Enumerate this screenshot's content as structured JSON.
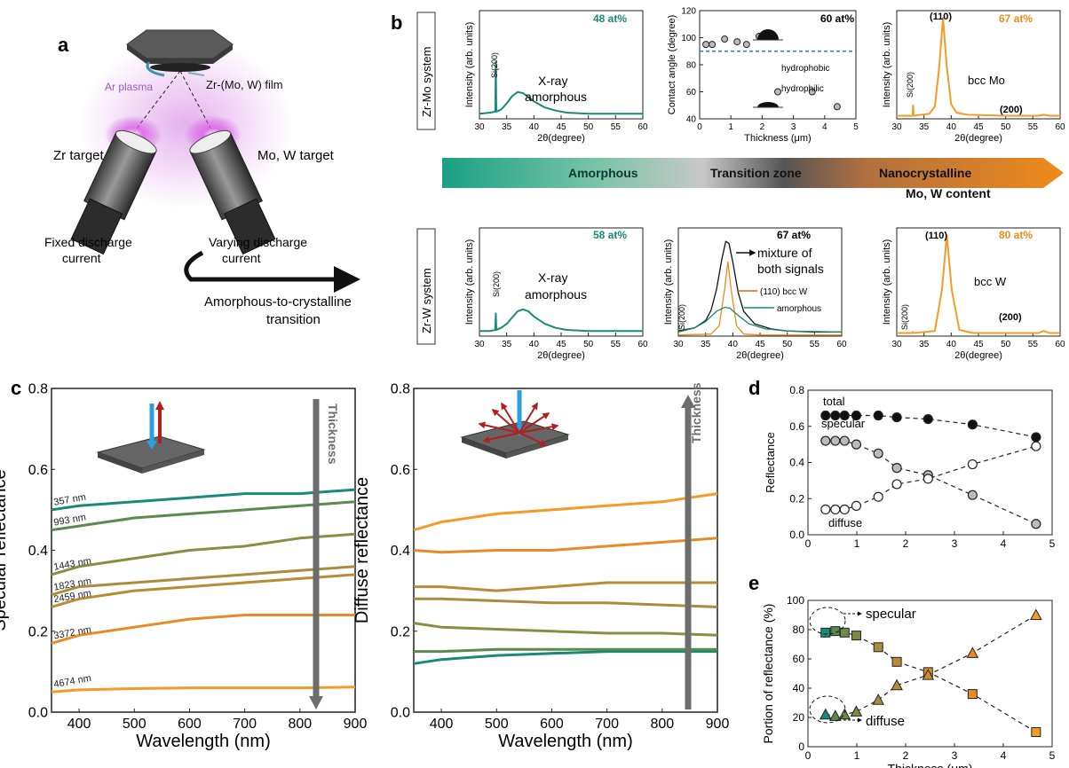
{
  "colors": {
    "teal": "#178a78",
    "orange": "#f59a25",
    "purple": "#9a5ac4",
    "arrowGray": "#6d6d6d",
    "dark": "#111111",
    "dashedBlue": "#2a7fc4",
    "thick": [
      "#178a78",
      "#5c8a4a",
      "#8b8c44",
      "#a98d3e",
      "#b88c36",
      "#e88a26",
      "#f59a25"
    ]
  },
  "panel_a": {
    "letter": "a",
    "ar_plasma": "Ar plasma",
    "film": "Zr-(Mo, W) film",
    "zr_target": "Zr target",
    "mow_target": "Mo, W target",
    "fixed1": "Fixed discharge",
    "fixed2": "current",
    "varying1": "Varying discharge",
    "varying2": "current",
    "transition1": "Amorphous-to-crystalline",
    "transition2": "transition"
  },
  "panel_b": {
    "letter": "b",
    "zrmo_label": "Zr-Mo system",
    "zrw_label": "Zr-W system",
    "band_amorphous": "Amorphous",
    "band_transition": "Transition zone",
    "band_nano": "Nanocrystalline",
    "band_content": "Mo, W content",
    "xrd_xlabel": "2θ(degree)",
    "xrd_ylabel": "Intensity (arb. units)",
    "si_label": "Si(200)",
    "p1": {
      "at": "48 at%",
      "desc1": "X-ray",
      "desc2": "amorphous"
    },
    "p3": {
      "at": "67 at%",
      "peak110": "(110)",
      "peak200": "(200)",
      "desc": "bcc Mo"
    },
    "p4": {
      "at": "58 at%",
      "desc1": "X-ray",
      "desc2": "amorphous"
    },
    "p5": {
      "at": "67 at%",
      "mix1": "mixture of",
      "mix2": "both signals",
      "bccw": "(110) bcc W",
      "amorph": "amorphous"
    },
    "p6": {
      "at": "80 at%",
      "peak110": "(110)",
      "peak200": "(200)",
      "desc": "bcc W"
    },
    "ca": {
      "at": "60 at%",
      "ylabel": "Contact angle (degree)",
      "xlabel": "Thickness (μm)",
      "hydrophobic": "hydrophobic",
      "hydrophilic": "hydrophilic"
    }
  },
  "panel_c_letter": "c",
  "panel_d_letter": "d",
  "panel_e_letter": "e",
  "spec_labels": [
    "357 nm",
    "993 nm",
    "1443 nm",
    "1823 nm",
    "2459 nm",
    "3372 nm",
    "4674 nm"
  ],
  "thickness_label": "Thickness",
  "d_labels": {
    "total": "total",
    "specular": "specular",
    "diffuse": "diffuse"
  },
  "e_labels": {
    "specular": "specular",
    "diffuse": "diffuse"
  },
  "chart_data": [
    {
      "id": "contact_angle",
      "type": "scatter",
      "xlabel": "Thickness (μm)",
      "ylabel": "Contact angle (degree)",
      "xlim": [
        0,
        5
      ],
      "ylim": [
        40,
        120
      ],
      "xticks": [
        0,
        1,
        2,
        3,
        4,
        5
      ],
      "yticks": [
        40,
        60,
        80,
        100,
        120
      ],
      "reference_line": 90,
      "x": [
        0.2,
        0.4,
        0.8,
        1.2,
        1.5,
        1.9,
        2.5,
        3.6,
        4.4
      ],
      "y": [
        95,
        95,
        99,
        97,
        95,
        101,
        60,
        60,
        49
      ]
    },
    {
      "id": "xrd_zrmo_48",
      "type": "line",
      "xlabel": "2θ(degree)",
      "ylabel": "Intensity (arb. units)",
      "xlim": [
        30,
        60
      ],
      "xticks": [
        30,
        35,
        40,
        45,
        50,
        55,
        60
      ],
      "series": [
        {
          "x": [
            30,
            32,
            32.9,
            33,
            33.1,
            34,
            35,
            36,
            37,
            38,
            39,
            40,
            42,
            44,
            46,
            50,
            55,
            60
          ],
          "y": [
            0.05,
            0.06,
            0.07,
            0.55,
            0.07,
            0.09,
            0.15,
            0.22,
            0.26,
            0.25,
            0.21,
            0.17,
            0.11,
            0.08,
            0.06,
            0.05,
            0.05,
            0.05
          ]
        }
      ]
    },
    {
      "id": "xrd_zrmo_67",
      "type": "line",
      "xlabel": "2θ(degree)",
      "ylabel": "Intensity (arb. units)",
      "xlim": [
        30,
        60
      ],
      "xticks": [
        30,
        35,
        40,
        45,
        50,
        55,
        60
      ],
      "series": [
        {
          "x": [
            30,
            32.9,
            33,
            33.1,
            36,
            37,
            37.8,
            38.5,
            39.2,
            40,
            41,
            43,
            50,
            56,
            57,
            58,
            60
          ],
          "y": [
            0.03,
            0.03,
            0.13,
            0.03,
            0.05,
            0.12,
            0.5,
            0.98,
            0.5,
            0.14,
            0.06,
            0.04,
            0.03,
            0.03,
            0.04,
            0.03,
            0.03
          ]
        }
      ]
    },
    {
      "id": "xrd_zrw_58",
      "type": "line",
      "xlabel": "2θ(degree)",
      "ylabel": "Intensity (arb. units)",
      "xlim": [
        30,
        60
      ],
      "xticks": [
        30,
        35,
        40,
        45,
        50,
        55,
        60
      ],
      "series": [
        {
          "x": [
            30,
            32,
            32.9,
            33,
            33.1,
            34,
            35,
            36,
            37,
            38,
            39,
            40,
            42,
            44,
            46,
            50,
            55,
            60
          ],
          "y": [
            0.05,
            0.05,
            0.06,
            0.22,
            0.06,
            0.08,
            0.12,
            0.18,
            0.24,
            0.26,
            0.24,
            0.19,
            0.12,
            0.08,
            0.06,
            0.05,
            0.05,
            0.05
          ]
        }
      ]
    },
    {
      "id": "xrd_zrw_67",
      "type": "line",
      "xlabel": "2θ(degree)",
      "ylabel": "Intensity (arb. units)",
      "xlim": [
        30,
        60
      ],
      "xticks": [
        30,
        35,
        40,
        45,
        50,
        55,
        60
      ],
      "series": [
        {
          "name": "mixture of both signals",
          "x": [
            30,
            33,
            35,
            36,
            37,
            38,
            38.7,
            39.3,
            40,
            41,
            42,
            44,
            47,
            50,
            55,
            60
          ],
          "y": [
            0.05,
            0.08,
            0.15,
            0.25,
            0.45,
            0.75,
            0.92,
            0.9,
            0.72,
            0.42,
            0.24,
            0.12,
            0.07,
            0.05,
            0.04,
            0.04
          ]
        },
        {
          "name": "(110) bcc W",
          "x": [
            30,
            36,
            37.5,
            38.5,
            39.1,
            39.7,
            40.7,
            42,
            45,
            60
          ],
          "y": [
            0.01,
            0.02,
            0.1,
            0.45,
            0.72,
            0.45,
            0.1,
            0.02,
            0.01,
            0.01
          ]
        },
        {
          "name": "amorphous",
          "x": [
            30,
            33,
            35,
            37,
            38.5,
            39.5,
            41,
            43,
            46,
            50,
            60
          ],
          "y": [
            0.04,
            0.08,
            0.14,
            0.24,
            0.28,
            0.27,
            0.2,
            0.12,
            0.07,
            0.05,
            0.04
          ]
        }
      ]
    },
    {
      "id": "xrd_zrw_80",
      "type": "line",
      "xlabel": "2θ(degree)",
      "ylabel": "Intensity (arb. units)",
      "xlim": [
        30,
        60
      ],
      "xticks": [
        30,
        35,
        40,
        45,
        50,
        55,
        60
      ],
      "series": [
        {
          "x": [
            30,
            32.9,
            33,
            33.1,
            37,
            38.3,
            39.2,
            40.1,
            41.5,
            44,
            50,
            56,
            57,
            58,
            60
          ],
          "y": [
            0.03,
            0.03,
            0.04,
            0.03,
            0.05,
            0.45,
            0.98,
            0.45,
            0.06,
            0.03,
            0.03,
            0.03,
            0.05,
            0.03,
            0.03
          ]
        }
      ]
    },
    {
      "id": "specular_reflectance",
      "type": "line",
      "xlabel": "Wavelength (nm)",
      "ylabel": "Specular reflectance",
      "xlim": [
        350,
        900
      ],
      "ylim": [
        0.0,
        0.8
      ],
      "xticks": [
        400,
        500,
        600,
        700,
        800,
        900
      ],
      "yticks": [
        0.0,
        0.2,
        0.4,
        0.6,
        0.8
      ],
      "x": [
        350,
        400,
        500,
        600,
        700,
        800,
        900
      ],
      "series": [
        {
          "name": "357 nm",
          "values": [
            0.5,
            0.51,
            0.52,
            0.53,
            0.54,
            0.54,
            0.55
          ]
        },
        {
          "name": "993 nm",
          "values": [
            0.45,
            0.46,
            0.48,
            0.49,
            0.5,
            0.51,
            0.52
          ]
        },
        {
          "name": "1443 nm",
          "values": [
            0.34,
            0.36,
            0.38,
            0.4,
            0.41,
            0.43,
            0.44
          ]
        },
        {
          "name": "1823 nm",
          "values": [
            0.29,
            0.31,
            0.32,
            0.33,
            0.34,
            0.35,
            0.36
          ]
        },
        {
          "name": "2459 nm",
          "values": [
            0.26,
            0.28,
            0.3,
            0.31,
            0.32,
            0.33,
            0.34
          ]
        },
        {
          "name": "3372 nm",
          "values": [
            0.17,
            0.19,
            0.21,
            0.23,
            0.24,
            0.24,
            0.24
          ]
        },
        {
          "name": "4674 nm",
          "values": [
            0.05,
            0.055,
            0.058,
            0.06,
            0.06,
            0.06,
            0.062
          ]
        }
      ]
    },
    {
      "id": "diffuse_reflectance",
      "type": "line",
      "xlabel": "Wavelength (nm)",
      "ylabel": "Diffuse reflectance",
      "xlim": [
        350,
        900
      ],
      "ylim": [
        0.0,
        0.8
      ],
      "xticks": [
        400,
        500,
        600,
        700,
        800,
        900
      ],
      "yticks": [
        0.0,
        0.2,
        0.4,
        0.6,
        0.8
      ],
      "x": [
        350,
        400,
        500,
        600,
        700,
        800,
        900
      ],
      "series": [
        {
          "values": [
            0.12,
            0.13,
            0.14,
            0.145,
            0.15,
            0.15,
            0.15
          ]
        },
        {
          "values": [
            0.15,
            0.15,
            0.155,
            0.155,
            0.155,
            0.155,
            0.155
          ]
        },
        {
          "values": [
            0.22,
            0.21,
            0.205,
            0.2,
            0.195,
            0.195,
            0.19
          ]
        },
        {
          "values": [
            0.28,
            0.28,
            0.275,
            0.27,
            0.27,
            0.265,
            0.26
          ]
        },
        {
          "values": [
            0.31,
            0.31,
            0.3,
            0.31,
            0.32,
            0.32,
            0.32
          ]
        },
        {
          "values": [
            0.4,
            0.395,
            0.4,
            0.4,
            0.41,
            0.42,
            0.43
          ]
        },
        {
          "values": [
            0.45,
            0.47,
            0.49,
            0.5,
            0.51,
            0.52,
            0.54
          ]
        }
      ]
    },
    {
      "id": "reflectance_vs_thickness",
      "type": "scatter",
      "xlabel": "",
      "ylabel": "Reflectance",
      "xlim": [
        0,
        5
      ],
      "ylim": [
        0.0,
        0.8
      ],
      "xticks": [
        0,
        1,
        2,
        3,
        4,
        5
      ],
      "yticks": [
        0.0,
        0.2,
        0.4,
        0.6,
        0.8
      ],
      "x": [
        0.36,
        0.56,
        0.75,
        0.99,
        1.44,
        1.82,
        2.46,
        3.37,
        4.67
      ],
      "series": [
        {
          "name": "total",
          "values": [
            0.66,
            0.66,
            0.66,
            0.66,
            0.66,
            0.65,
            0.64,
            0.61,
            0.54
          ]
        },
        {
          "name": "specular",
          "values": [
            0.52,
            0.52,
            0.52,
            0.5,
            0.45,
            0.37,
            0.33,
            0.22,
            0.06
          ]
        },
        {
          "name": "diffuse",
          "values": [
            0.14,
            0.14,
            0.14,
            0.16,
            0.21,
            0.28,
            0.31,
            0.39,
            0.49
          ]
        }
      ]
    },
    {
      "id": "portion_vs_thickness",
      "type": "scatter",
      "xlabel": "Thickness (μm)",
      "ylabel": "Portion of reflectance (%)",
      "xlim": [
        0,
        5
      ],
      "ylim": [
        0,
        100
      ],
      "xticks": [
        0,
        1,
        2,
        3,
        4,
        5
      ],
      "yticks": [
        0,
        20,
        40,
        60,
        80,
        100
      ],
      "x": [
        0.36,
        0.56,
        0.75,
        0.99,
        1.44,
        1.82,
        2.46,
        3.37,
        4.67
      ],
      "series": [
        {
          "name": "specular",
          "values": [
            78,
            79,
            78,
            76,
            68,
            58,
            51,
            36,
            10
          ]
        },
        {
          "name": "diffuse",
          "values": [
            22,
            21,
            22,
            24,
            32,
            42,
            49,
            64,
            90
          ]
        }
      ]
    }
  ]
}
